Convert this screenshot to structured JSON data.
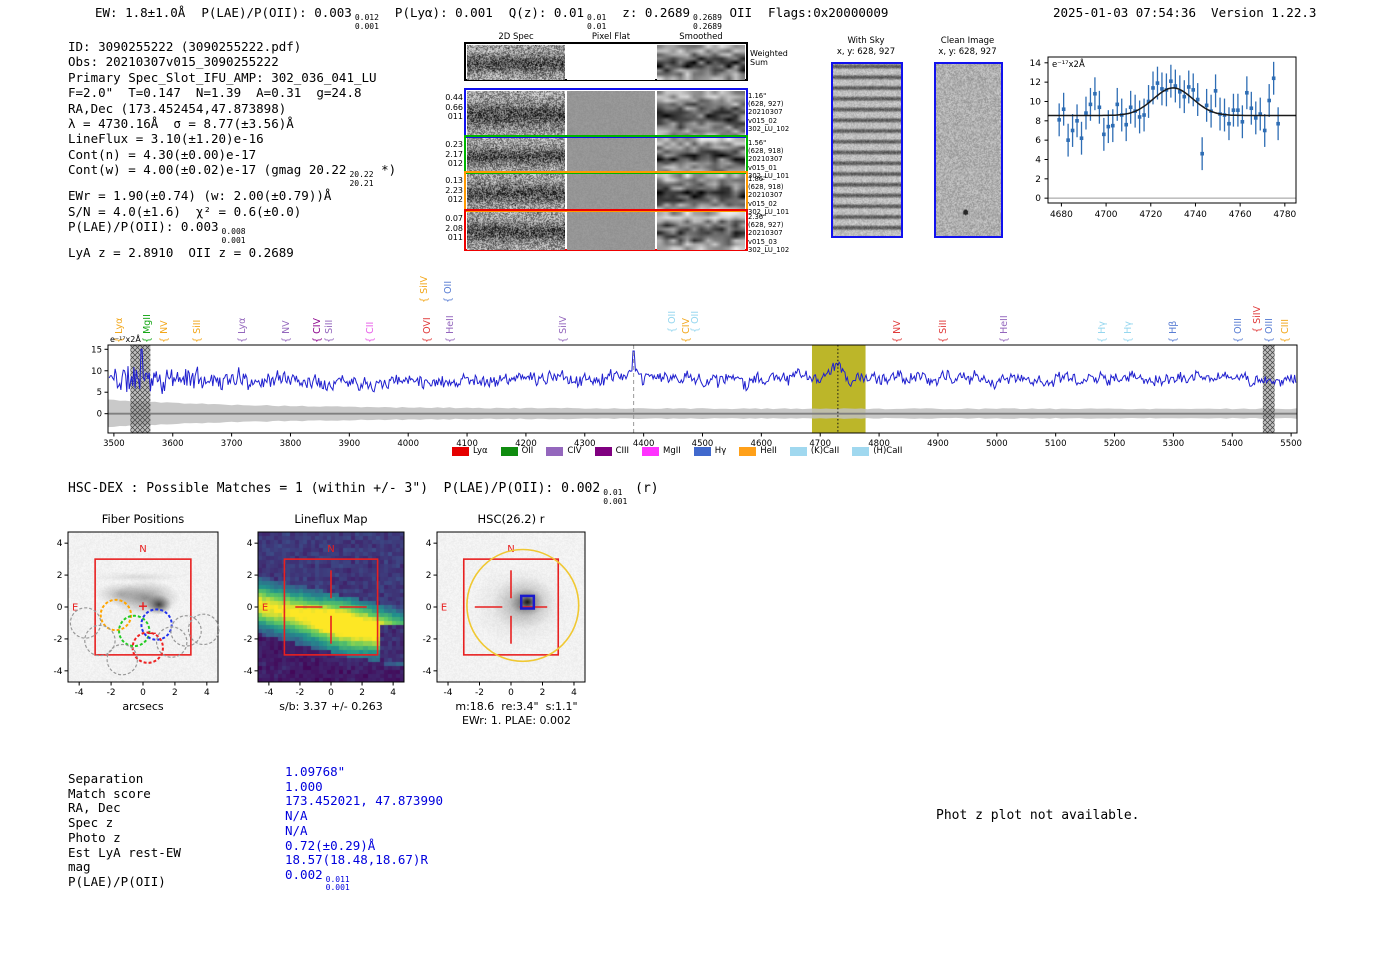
{
  "header": {
    "parts": [
      [
        {
          "t": "EW: 1.8±1.0Å"
        }
      ],
      [
        {
          "t": "P(LAE)/P(OII): 0.003"
        },
        {
          "sup": "0.012",
          "sub": "0.001"
        }
      ],
      [
        {
          "t": "P(Lyα): 0.001"
        }
      ],
      [
        {
          "t": "Q(z): 0.01"
        },
        {
          "sup": "0.01",
          "sub": "0.01"
        }
      ],
      [
        {
          "t": "z: 0.2689"
        },
        {
          "sup": "0.2689",
          "sub": "0.2689"
        },
        {
          "t": " OII"
        }
      ],
      [
        {
          "t": "Flags:0x20000009"
        }
      ]
    ],
    "timestamp": "2025-01-03 07:54:36  Version 1.22.3"
  },
  "info_lines": [
    "ID: 3090255222 (3090255222.pdf)",
    "Obs: 20210307v015_3090255222",
    "Primary Spec_Slot_IFU_AMP: 302_036_041_LU",
    "F=2.0\"  T=0.147  N=1.39  A=0.31  g=24.8",
    "RA,Dec (173.452454,47.873898)",
    "λ = 4730.16Å  σ = 8.77(±3.56)Å",
    "LineFlux = 3.10(±1.20)e-16",
    "Cont(n) = 4.30(±0.00)e-17",
    [
      {
        "t": "Cont(w) = 4.00(±0.02)e-17 (gmag 20.22"
      },
      {
        "sup": "20.22",
        "sub": "20.21"
      },
      {
        "t": " *)"
      }
    ],
    "EWr = 1.90(±0.74) (w: 2.00(±0.79))Å",
    "S/N = 4.0(±1.6)  χ² = 0.6(±0.0)",
    [
      {
        "t": "P(LAE)/P(OII): 0.003"
      },
      {
        "sup": "0.008",
        "sub": "0.001"
      }
    ],
    "LyA z = 2.8910  OII z = 0.2689"
  ],
  "cutouts": {
    "col_headers": [
      "2D Spec",
      "Pixel Flat",
      "Smoothed"
    ],
    "weighted_label": "Weighted Sum",
    "rows": [
      {
        "border": "#000000",
        "left": [],
        "right": []
      },
      {
        "border": "#1111ee",
        "left": [
          "0.44",
          "0.66",
          "011"
        ],
        "right": [
          "1.16\"",
          "(628, 927)",
          "20210307",
          "v015_02",
          "302_LU_102"
        ]
      },
      {
        "border": "#00b400",
        "left": [
          "0.23",
          "2.17",
          "012"
        ],
        "right": [
          "1.56\"",
          "(628, 918)",
          "20210307",
          "v015_01",
          "302_LU_101"
        ]
      },
      {
        "border": "#ff9900",
        "left": [
          "0.13",
          "2.23",
          "012"
        ],
        "right": [
          "1.86\"",
          "(628, 918)",
          "20210307",
          "v015_02",
          "302_LU_101"
        ]
      },
      {
        "border": "#ee0000",
        "left": [
          "0.07",
          "2.08",
          "011"
        ],
        "right": [
          "2.36\"",
          "(628, 927)",
          "20210307",
          "v015_03",
          "302_LU_102"
        ]
      }
    ]
  },
  "sky_cutouts": [
    {
      "title": "With Sky",
      "subtitle": "x, y: 628, 927"
    },
    {
      "title": "Clean Image",
      "subtitle": "x, y: 628, 927"
    }
  ],
  "chart_data": [
    {
      "type": "scatter",
      "name": "line_fit_zoom",
      "unit_label": "e⁻¹⁷x2Å",
      "x_start": 4679,
      "x_step": 2,
      "values": [
        8.1,
        9.2,
        6.0,
        7.0,
        8.0,
        6.2,
        8.8,
        9.7,
        10.8,
        9.4,
        6.6,
        7.4,
        7.5,
        9.7,
        8.6,
        7.6,
        9.4,
        9.0,
        8.4,
        8.6,
        10.0,
        11.4,
        11.9,
        11.3,
        11.2,
        12.1,
        11.6,
        11.0,
        10.5,
        11.5,
        11.2,
        10.2,
        4.6,
        9.6,
        9.0,
        11.1,
        8.7,
        8.6,
        7.7,
        9.1,
        9.1,
        7.9,
        10.9,
        9.3,
        8.3,
        8.7,
        7.0,
        10.1,
        12.4,
        7.7
      ],
      "yerr": 1.7,
      "fit": {
        "baseline": 8.55,
        "amplitude": 2.85,
        "center": 4730,
        "sigma": 8.77
      },
      "xticks": [
        4680,
        4700,
        4720,
        4740,
        4760,
        4780
      ],
      "yticks": [
        0,
        2,
        4,
        6,
        8,
        10,
        12,
        14
      ],
      "xlim": [
        4674,
        4785
      ],
      "ylim": [
        -0.5,
        14.6
      ],
      "marker_color": "#2e6db4",
      "fit_color": "#1a1a1a"
    },
    {
      "type": "line",
      "name": "full_spectrum",
      "unit_label": "e⁻¹⁷x2Å",
      "xlim": [
        3490,
        5510
      ],
      "ylim": [
        -4.5,
        16
      ],
      "xticks": [
        3500,
        3600,
        3700,
        3800,
        3900,
        4000,
        4100,
        4200,
        4300,
        4400,
        4500,
        4600,
        4700,
        4800,
        4900,
        5000,
        5100,
        5200,
        5300,
        5400,
        5500
      ],
      "yticks": [
        0,
        5,
        10,
        15
      ],
      "baseline": 8.1,
      "noise_seed": 11,
      "emission": {
        "center": 4730,
        "amplitude": 2.6,
        "sigma": 9
      },
      "highlight_band": [
        4686,
        4777
      ],
      "detection_line": 4730,
      "dashed_line": 4383,
      "hatch_bands": [
        [
          3528,
          3562
        ],
        [
          5452,
          5472
        ]
      ],
      "line_color": "#2020cf",
      "highlight_color": "#b5ae12",
      "legend": [
        {
          "label": "Lyα",
          "color": "#e50000"
        },
        {
          "label": "OII",
          "color": "#0f8c0f"
        },
        {
          "label": "CIV",
          "color": "#9467bd"
        },
        {
          "label": "CIII",
          "color": "#800080"
        },
        {
          "label": "MgII",
          "color": "#ff33ff"
        },
        {
          "label": "Hγ",
          "color": "#4169cd"
        },
        {
          "label": "HeII",
          "color": "#ffa019"
        },
        {
          "label": "(K)CaII",
          "color": "#a0d8ef"
        },
        {
          "label": "(H)CaII",
          "color": "#a0d8ef"
        }
      ],
      "line_labels": [
        {
          "name": "Lyα",
          "wave": 3504,
          "color": "#f2a71b",
          "rise": 0
        },
        {
          "name": "MgII",
          "wave": 3551,
          "color": "#18a818",
          "rise": 0
        },
        {
          "name": "NV",
          "wave": 3580,
          "color": "#f2a71b",
          "rise": 0
        },
        {
          "name": "SiII",
          "wave": 3636,
          "color": "#f2a71b",
          "rise": 0
        },
        {
          "name": "Lyα",
          "wave": 3713,
          "color": "#9467bd",
          "rise": 0
        },
        {
          "name": "NV",
          "wave": 3787,
          "color": "#9467bd",
          "rise": 0
        },
        {
          "name": "CIV",
          "wave": 3840,
          "color": "#8b008b",
          "rise": 0
        },
        {
          "name": "SiII",
          "wave": 3861,
          "color": "#9467bd",
          "rise": 0
        },
        {
          "name": "CII",
          "wave": 3930,
          "color": "#e85de8",
          "rise": 0
        },
        {
          "name": "SiIV",
          "wave": 4021,
          "color": "#f2a71b",
          "rise": 40
        },
        {
          "name": "OVI",
          "wave": 4027,
          "color": "#e03a3a",
          "rise": 0
        },
        {
          "name": "OII",
          "wave": 4062,
          "color": "#5b7fd4",
          "rise": 40
        },
        {
          "name": "HeII",
          "wave": 4066,
          "color": "#9467bd",
          "rise": 0
        },
        {
          "name": "SiIV",
          "wave": 4258,
          "color": "#9467bd",
          "rise": 0
        },
        {
          "name": "OII",
          "wave": 4443,
          "color": "#96d7ef",
          "rise": 10
        },
        {
          "name": "CIV",
          "wave": 4467,
          "color": "#f2a71b",
          "rise": 0
        },
        {
          "name": "OII",
          "wave": 4482,
          "color": "#96d7ef",
          "rise": 10
        },
        {
          "name": "NV",
          "wave": 4825,
          "color": "#e03a3a",
          "rise": 0
        },
        {
          "name": "SiII",
          "wave": 4903,
          "color": "#e03a3a",
          "rise": 0
        },
        {
          "name": "HeII",
          "wave": 5007,
          "color": "#9467bd",
          "rise": 0
        },
        {
          "name": "Hγ",
          "wave": 5173,
          "color": "#96d7ef",
          "rise": 0
        },
        {
          "name": "Hγ",
          "wave": 5218,
          "color": "#96d7ef",
          "rise": 0
        },
        {
          "name": "Hβ",
          "wave": 5295,
          "color": "#5b7fd4",
          "rise": 0
        },
        {
          "name": "OIII",
          "wave": 5405,
          "color": "#5b7fd4",
          "rise": 0
        },
        {
          "name": "SiIV",
          "wave": 5437,
          "color": "#e03a3a",
          "rise": 10
        },
        {
          "name": "OIII",
          "wave": 5458,
          "color": "#5b7fd4",
          "rise": 0
        },
        {
          "name": "CIII",
          "wave": 5484,
          "color": "#f2a71b",
          "rise": 0
        }
      ]
    },
    {
      "type": "scatter",
      "title": "Fiber Positions",
      "xlabel": "arcsecs",
      "xlim": [
        -4.7,
        4.7
      ],
      "ylim": [
        -4.7,
        4.7
      ],
      "ticks": [
        -4,
        -2,
        0,
        2,
        4
      ],
      "box": 3,
      "compass": {
        "n": "N",
        "e": "E"
      },
      "fiber_radius": 0.95,
      "fibers": [
        {
          "x": -1.7,
          "y": -0.5,
          "color": "#ffa500"
        },
        {
          "x": -0.55,
          "y": -1.5,
          "color": "#22cc22"
        },
        {
          "x": 0.85,
          "y": -1.1,
          "color": "#2233ee"
        },
        {
          "x": 0.3,
          "y": -2.55,
          "color": "#ee2222"
        },
        {
          "x": -3.6,
          "y": -1.0,
          "color": "#999999"
        },
        {
          "x": -2.7,
          "y": -2.1,
          "color": "#999999"
        },
        {
          "x": -1.3,
          "y": -3.3,
          "color": "#999999"
        },
        {
          "x": 1.8,
          "y": -2.2,
          "color": "#999999"
        },
        {
          "x": 2.7,
          "y": -1.5,
          "color": "#999999"
        },
        {
          "x": 3.8,
          "y": -1.4,
          "color": "#999999"
        }
      ]
    },
    {
      "type": "heatmap",
      "title": "Lineflux Map",
      "xlabel": "s/b: 3.37 +/- 0.263",
      "xlim": [
        -4.7,
        4.7
      ],
      "ylim": [
        -4.7,
        4.7
      ],
      "ticks": [
        -4,
        -2,
        0,
        2,
        4
      ],
      "box": 3,
      "compass": {
        "n": "N",
        "e": "E"
      }
    },
    {
      "type": "image",
      "title": "HSC(26.2) r",
      "caption1": "m:18.6  re:3.4\"  s:1.1\"",
      "caption2": "EWr: 1. PLAE: 0.002",
      "xlim": [
        -4.7,
        4.7
      ],
      "ylim": [
        -4.7,
        4.7
      ],
      "ticks": [
        -4,
        -2,
        0,
        2,
        4
      ],
      "box": 3,
      "compass": {
        "n": "N",
        "e": "E"
      },
      "aperture": {
        "x": 0.75,
        "y": 0.1,
        "r": 3.55,
        "color": "#f0c832"
      },
      "marker": {
        "x": 1.05,
        "y": 0.3,
        "size": 0.8,
        "color": "#1a1acc"
      }
    }
  ],
  "match_section": {
    "heading": [
      {
        "t": "HSC-DEX : Possible Matches = 1 (within +/- 3\")  P(LAE)/P(OII): 0.002"
      },
      {
        "sup": "0.01",
        "sub": "0.001"
      },
      {
        "t": " (r)"
      }
    ],
    "labels": [
      "Separation",
      "Match score",
      "RA, Dec",
      "Spec z",
      "Photo z",
      "Est LyA rest-EW",
      "mag",
      "P(LAE)/P(OII)"
    ],
    "values": [
      "1.09768\"",
      "1.000",
      "173.452021, 47.873990",
      "N/A",
      "N/A",
      "0.72(±0.29)Å",
      "18.57(18.48,18.67)R",
      [
        {
          "t": "0.002"
        },
        {
          "sup": "0.011",
          "sub": "0.001"
        }
      ]
    ],
    "note": "Phot z plot not available."
  }
}
